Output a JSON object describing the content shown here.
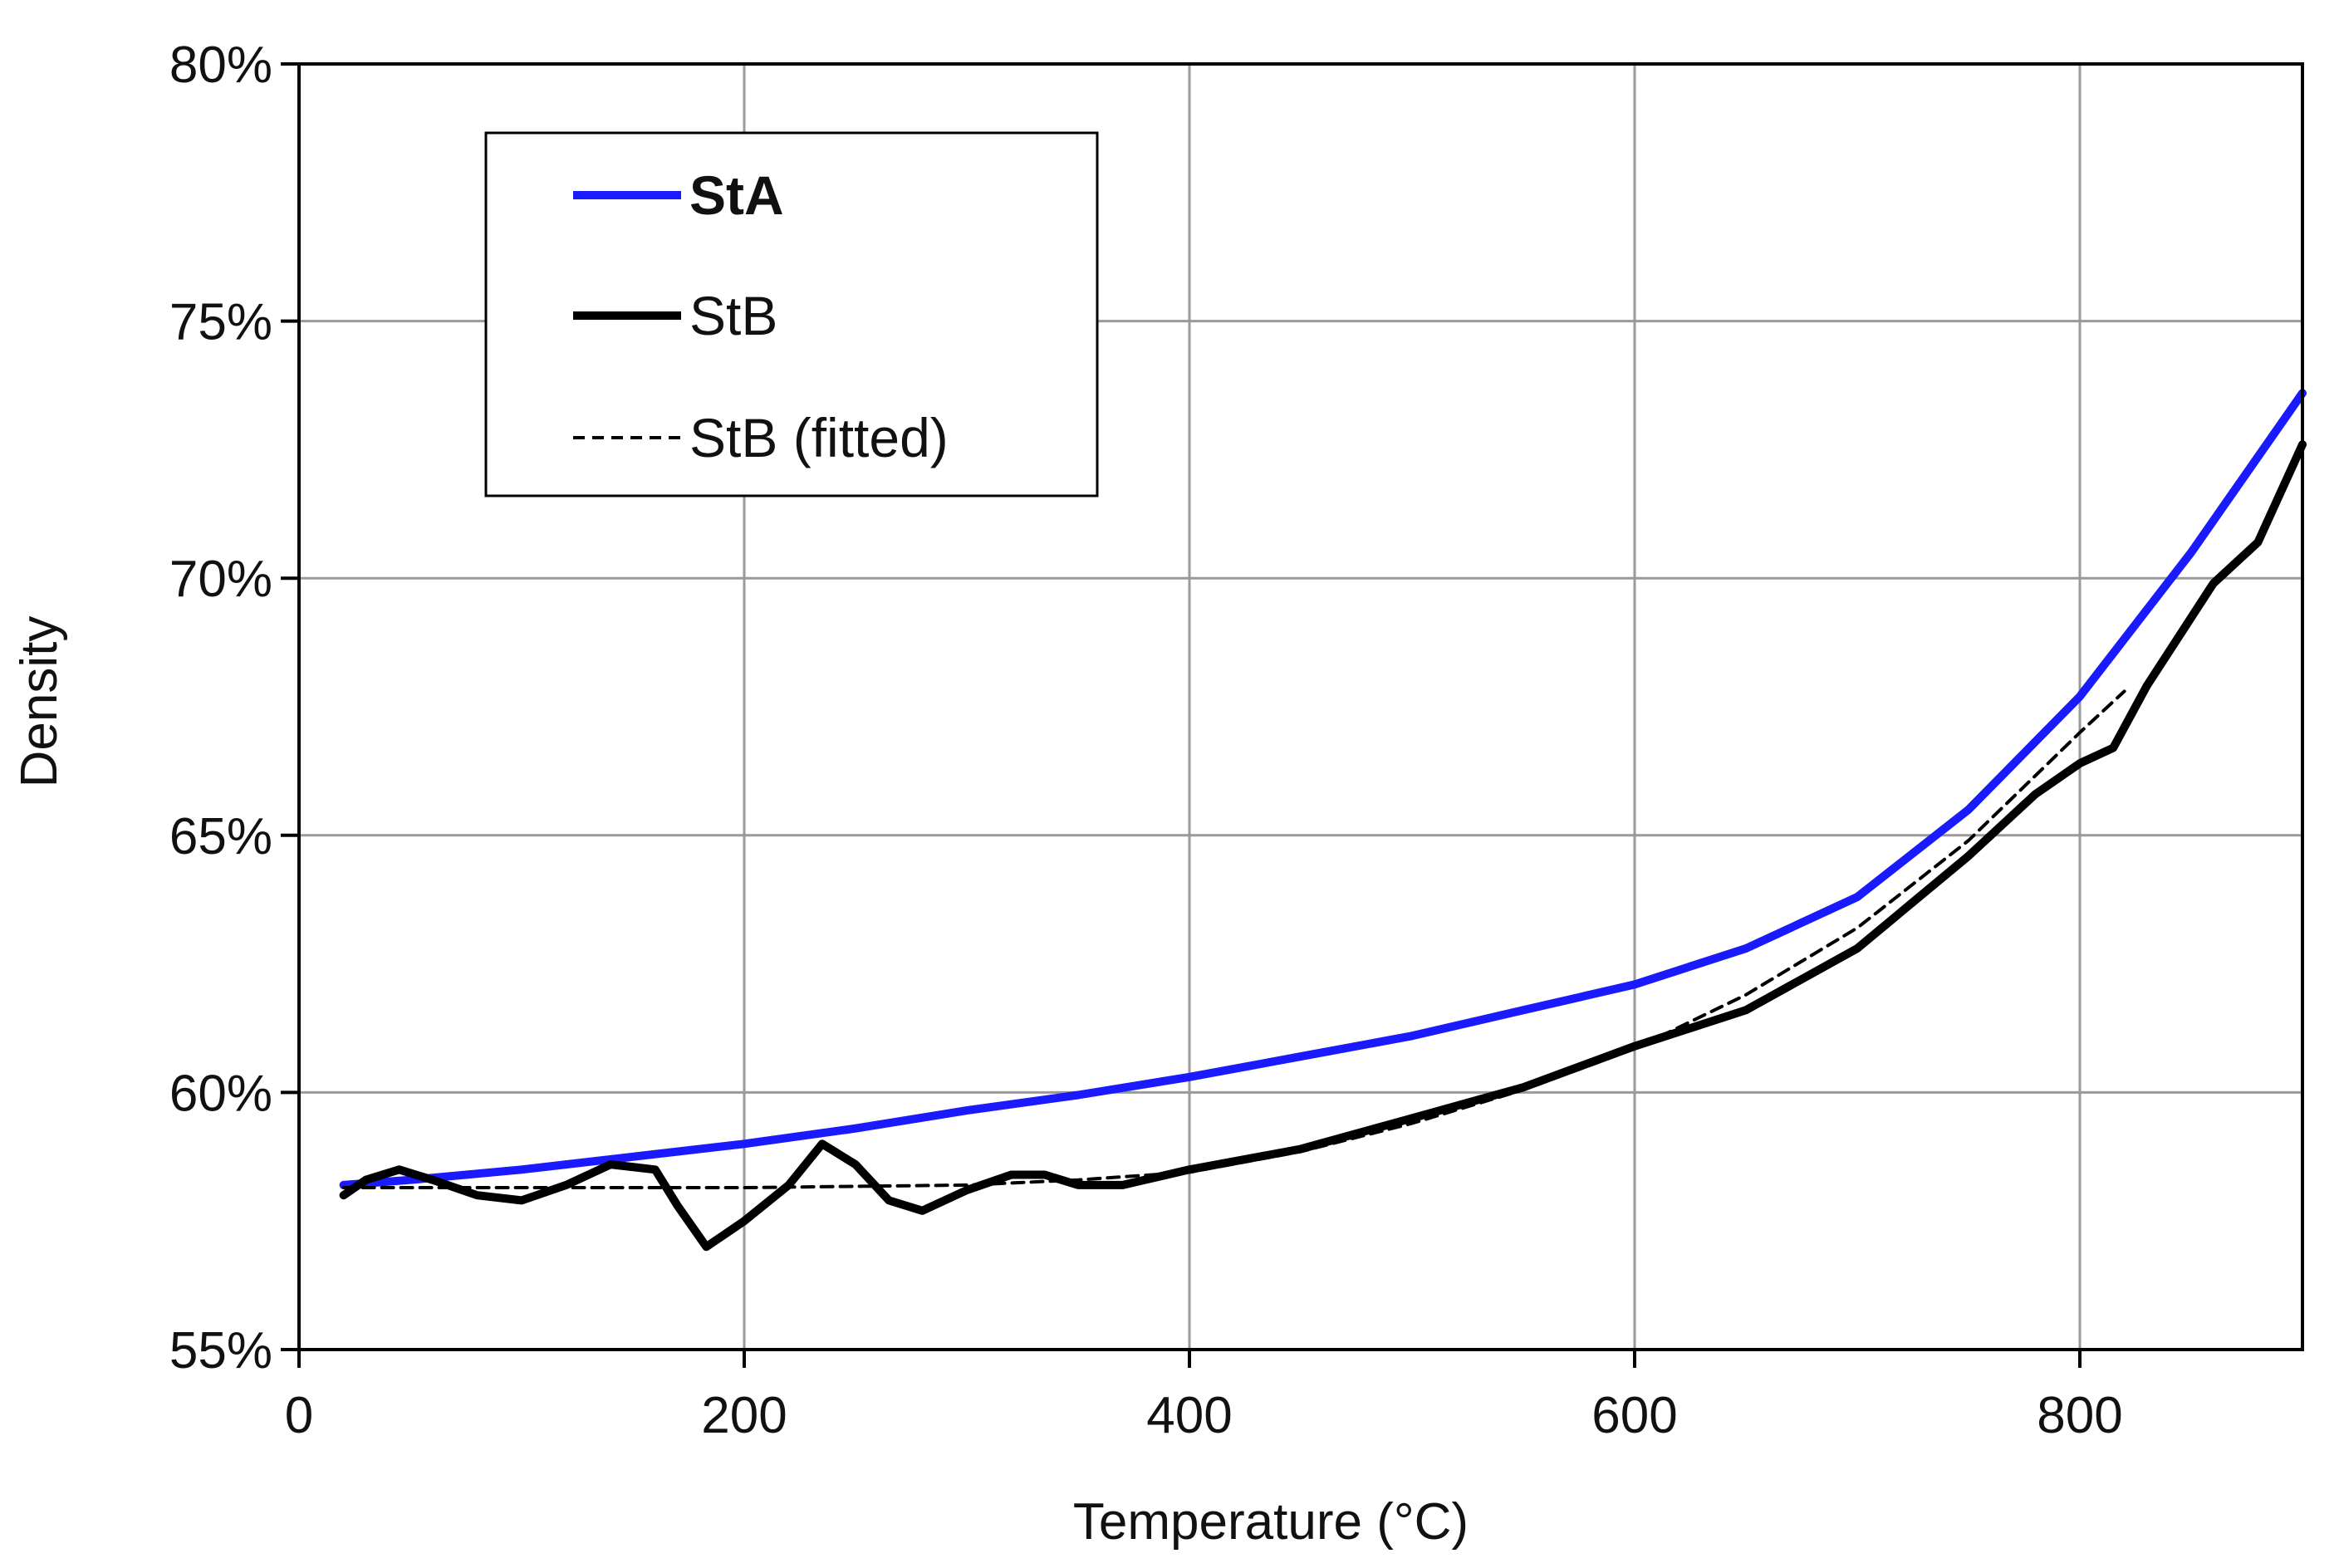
{
  "chart_data": {
    "type": "line",
    "title": "",
    "xlabel": "Temperature (°C)",
    "ylabel": "Density",
    "xlim": [
      0,
      900
    ],
    "ylim": [
      55,
      80
    ],
    "x_ticks": [
      0,
      200,
      400,
      600,
      800
    ],
    "x_tick_labels": [
      "0",
      "200",
      "400",
      "600",
      "800"
    ],
    "y_ticks": [
      55,
      60,
      65,
      70,
      75,
      80
    ],
    "y_tick_labels": [
      "55%",
      "60%",
      "65%",
      "70%",
      "75%",
      "80%"
    ],
    "grid": true,
    "legend_position": "top-left",
    "series": [
      {
        "name": "StA",
        "color": "#1a1aff",
        "style": "solid",
        "legend_bold": true,
        "x": [
          20,
          50,
          100,
          150,
          200,
          250,
          300,
          350,
          400,
          450,
          500,
          550,
          600,
          650,
          700,
          750,
          800,
          850,
          900
        ],
        "y": [
          58.2,
          58.3,
          58.5,
          58.75,
          59.0,
          59.3,
          59.65,
          59.95,
          60.3,
          60.7,
          61.1,
          61.6,
          62.1,
          62.8,
          63.8,
          65.5,
          67.7,
          70.5,
          73.6
        ]
      },
      {
        "name": "StB",
        "color": "#000000",
        "style": "solid",
        "legend_bold": false,
        "x": [
          20,
          30,
          45,
          60,
          80,
          100,
          120,
          140,
          160,
          170,
          183,
          200,
          220,
          235,
          250,
          265,
          280,
          300,
          320,
          335,
          350,
          370,
          400,
          450,
          500,
          550,
          600,
          650,
          700,
          750,
          780,
          800,
          815,
          830,
          860,
          880,
          900
        ],
        "y": [
          58.0,
          58.3,
          58.5,
          58.3,
          58.0,
          57.9,
          58.2,
          58.6,
          58.5,
          57.8,
          57.0,
          57.5,
          58.2,
          59.0,
          58.6,
          57.9,
          57.7,
          58.1,
          58.4,
          58.4,
          58.2,
          58.2,
          58.5,
          58.9,
          59.5,
          60.1,
          60.9,
          61.6,
          62.8,
          64.6,
          65.8,
          66.4,
          66.7,
          67.9,
          69.9,
          70.7,
          72.6
        ]
      },
      {
        "name": "StB (fitted)",
        "color": "#000000",
        "style": "dashed",
        "legend_bold": false,
        "x": [
          20,
          100,
          200,
          300,
          350,
          400,
          450,
          500,
          550,
          600,
          650,
          700,
          750,
          800,
          820
        ],
        "y": [
          58.15,
          58.15,
          58.15,
          58.2,
          58.3,
          58.45,
          58.85,
          59.4,
          60.05,
          60.85,
          61.9,
          63.2,
          64.9,
          67.0,
          67.8
        ]
      }
    ]
  }
}
